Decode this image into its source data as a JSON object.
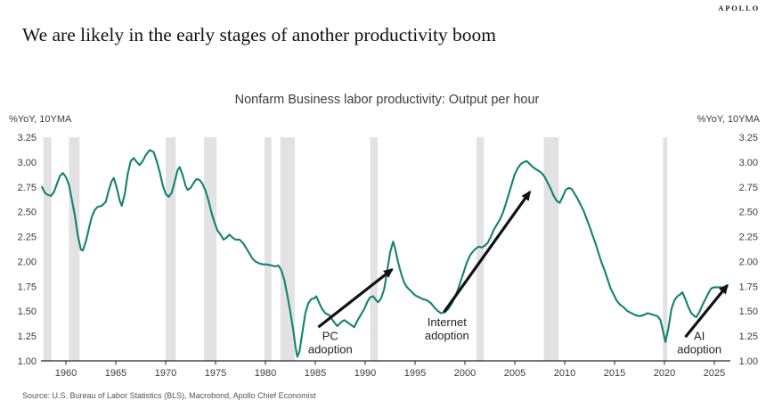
{
  "brand": "APOLLO",
  "headline": "We are likely in the early stages of another productivity boom",
  "source": "Source: U.S. Bureau of Labor Statistics (BLS), Macrobond, Apollo Chief Economist",
  "chart_data": {
    "type": "line",
    "title": "Nonfarm Business labor productivity: Output per hour",
    "y_axis_label_left": "%YoY, 10YMA",
    "y_axis_label_right": "%YoY, 10YMA",
    "ylim": [
      1.0,
      3.25
    ],
    "xlim": [
      1957.5,
      2026.6
    ],
    "grid": false,
    "legend": "none",
    "y_ticks": [
      "3.25",
      "3.00",
      "2.75",
      "2.50",
      "2.25",
      "2.00",
      "1.75",
      "1.50",
      "1.25",
      "1.00"
    ],
    "x_ticks": [
      1960,
      1965,
      1970,
      1975,
      1980,
      1985,
      1990,
      1995,
      2000,
      2005,
      2010,
      2015,
      2020,
      2025
    ],
    "line_color": "#148270",
    "recession_band_color": "#e2e2e2",
    "recessions": [
      [
        1957.75,
        1958.55
      ],
      [
        1960.3,
        1961.35
      ],
      [
        1970.0,
        1971.0
      ],
      [
        1973.85,
        1975.1
      ],
      [
        1979.9,
        1980.6
      ],
      [
        1981.5,
        1982.95
      ],
      [
        1990.5,
        1991.25
      ],
      [
        2001.15,
        2001.9
      ],
      [
        2007.9,
        2009.4
      ],
      [
        2019.85,
        2020.3
      ]
    ],
    "series": [
      {
        "points": [
          [
            1957.6,
            2.75
          ],
          [
            1957.9,
            2.69
          ],
          [
            1958.2,
            2.67
          ],
          [
            1958.5,
            2.66
          ],
          [
            1958.8,
            2.7
          ],
          [
            1959.1,
            2.78
          ],
          [
            1959.4,
            2.86
          ],
          [
            1959.7,
            2.89
          ],
          [
            1960.0,
            2.85
          ],
          [
            1960.3,
            2.77
          ],
          [
            1960.6,
            2.62
          ],
          [
            1960.9,
            2.46
          ],
          [
            1961.2,
            2.26
          ],
          [
            1961.5,
            2.12
          ],
          [
            1961.7,
            2.11
          ],
          [
            1962.0,
            2.2
          ],
          [
            1962.3,
            2.33
          ],
          [
            1962.6,
            2.45
          ],
          [
            1962.9,
            2.52
          ],
          [
            1963.2,
            2.55
          ],
          [
            1963.6,
            2.56
          ],
          [
            1964.0,
            2.6
          ],
          [
            1964.3,
            2.72
          ],
          [
            1964.6,
            2.81
          ],
          [
            1964.8,
            2.84
          ],
          [
            1965.1,
            2.74
          ],
          [
            1965.4,
            2.61
          ],
          [
            1965.6,
            2.56
          ],
          [
            1965.9,
            2.68
          ],
          [
            1966.2,
            2.88
          ],
          [
            1966.5,
            3.01
          ],
          [
            1966.8,
            3.04
          ],
          [
            1967.1,
            3.0
          ],
          [
            1967.4,
            2.97
          ],
          [
            1967.7,
            3.01
          ],
          [
            1968.0,
            3.07
          ],
          [
            1968.4,
            3.12
          ],
          [
            1968.8,
            3.1
          ],
          [
            1969.1,
            3.01
          ],
          [
            1969.4,
            2.9
          ],
          [
            1969.7,
            2.77
          ],
          [
            1970.0,
            2.68
          ],
          [
            1970.3,
            2.65
          ],
          [
            1970.6,
            2.69
          ],
          [
            1970.9,
            2.8
          ],
          [
            1971.2,
            2.92
          ],
          [
            1971.4,
            2.95
          ],
          [
            1971.7,
            2.87
          ],
          [
            1972.0,
            2.76
          ],
          [
            1972.2,
            2.72
          ],
          [
            1972.5,
            2.74
          ],
          [
            1972.8,
            2.79
          ],
          [
            1973.1,
            2.83
          ],
          [
            1973.4,
            2.82
          ],
          [
            1973.7,
            2.78
          ],
          [
            1974.0,
            2.71
          ],
          [
            1974.3,
            2.61
          ],
          [
            1974.6,
            2.49
          ],
          [
            1974.9,
            2.39
          ],
          [
            1975.2,
            2.31
          ],
          [
            1975.5,
            2.27
          ],
          [
            1975.8,
            2.22
          ],
          [
            1976.1,
            2.24
          ],
          [
            1976.4,
            2.27
          ],
          [
            1976.7,
            2.24
          ],
          [
            1977.0,
            2.22
          ],
          [
            1977.4,
            2.22
          ],
          [
            1977.8,
            2.18
          ],
          [
            1978.1,
            2.13
          ],
          [
            1978.4,
            2.08
          ],
          [
            1978.7,
            2.03
          ],
          [
            1979.0,
            2.0
          ],
          [
            1979.4,
            1.98
          ],
          [
            1979.8,
            1.97
          ],
          [
            1980.2,
            1.97
          ],
          [
            1980.6,
            1.96
          ],
          [
            1981.0,
            1.95
          ],
          [
            1981.3,
            1.96
          ],
          [
            1981.6,
            1.91
          ],
          [
            1981.9,
            1.81
          ],
          [
            1982.2,
            1.66
          ],
          [
            1982.5,
            1.49
          ],
          [
            1982.8,
            1.3
          ],
          [
            1983.0,
            1.15
          ],
          [
            1983.2,
            1.04
          ],
          [
            1983.4,
            1.09
          ],
          [
            1983.7,
            1.28
          ],
          [
            1984.0,
            1.48
          ],
          [
            1984.3,
            1.58
          ],
          [
            1984.6,
            1.62
          ],
          [
            1984.9,
            1.63
          ],
          [
            1985.1,
            1.65
          ],
          [
            1985.4,
            1.58
          ],
          [
            1985.7,
            1.52
          ],
          [
            1986.0,
            1.48
          ],
          [
            1986.4,
            1.46
          ],
          [
            1986.8,
            1.4
          ],
          [
            1987.2,
            1.35
          ],
          [
            1987.6,
            1.39
          ],
          [
            1987.9,
            1.41
          ],
          [
            1988.2,
            1.39
          ],
          [
            1988.6,
            1.36
          ],
          [
            1988.9,
            1.34
          ],
          [
            1989.2,
            1.4
          ],
          [
            1989.6,
            1.47
          ],
          [
            1989.9,
            1.52
          ],
          [
            1990.2,
            1.59
          ],
          [
            1990.5,
            1.64
          ],
          [
            1990.8,
            1.65
          ],
          [
            1991.1,
            1.61
          ],
          [
            1991.3,
            1.59
          ],
          [
            1991.6,
            1.63
          ],
          [
            1991.9,
            1.72
          ],
          [
            1992.2,
            1.9
          ],
          [
            1992.5,
            2.09
          ],
          [
            1992.8,
            2.2
          ],
          [
            1993.0,
            2.13
          ],
          [
            1993.3,
            1.99
          ],
          [
            1993.6,
            1.88
          ],
          [
            1993.9,
            1.79
          ],
          [
            1994.2,
            1.74
          ],
          [
            1994.6,
            1.7
          ],
          [
            1995.0,
            1.66
          ],
          [
            1995.4,
            1.64
          ],
          [
            1995.8,
            1.62
          ],
          [
            1996.2,
            1.61
          ],
          [
            1996.6,
            1.58
          ],
          [
            1997.0,
            1.53
          ],
          [
            1997.3,
            1.5
          ],
          [
            1997.6,
            1.48
          ],
          [
            1998.0,
            1.49
          ],
          [
            1998.3,
            1.52
          ],
          [
            1998.7,
            1.58
          ],
          [
            1999.0,
            1.64
          ],
          [
            1999.3,
            1.72
          ],
          [
            1999.6,
            1.81
          ],
          [
            1999.9,
            1.9
          ],
          [
            2000.2,
            1.99
          ],
          [
            2000.5,
            2.06
          ],
          [
            2000.8,
            2.1
          ],
          [
            2001.1,
            2.13
          ],
          [
            2001.4,
            2.15
          ],
          [
            2001.7,
            2.14
          ],
          [
            2002.0,
            2.16
          ],
          [
            2002.3,
            2.19
          ],
          [
            2002.6,
            2.25
          ],
          [
            2002.9,
            2.32
          ],
          [
            2003.2,
            2.37
          ],
          [
            2003.5,
            2.42
          ],
          [
            2003.8,
            2.49
          ],
          [
            2004.1,
            2.58
          ],
          [
            2004.4,
            2.68
          ],
          [
            2004.7,
            2.78
          ],
          [
            2005.0,
            2.88
          ],
          [
            2005.3,
            2.94
          ],
          [
            2005.6,
            2.98
          ],
          [
            2005.9,
            3.0
          ],
          [
            2006.2,
            3.01
          ],
          [
            2006.5,
            2.98
          ],
          [
            2006.8,
            2.95
          ],
          [
            2007.1,
            2.93
          ],
          [
            2007.4,
            2.91
          ],
          [
            2007.7,
            2.89
          ],
          [
            2008.0,
            2.85
          ],
          [
            2008.3,
            2.79
          ],
          [
            2008.6,
            2.73
          ],
          [
            2008.9,
            2.66
          ],
          [
            2009.2,
            2.61
          ],
          [
            2009.5,
            2.59
          ],
          [
            2009.8,
            2.65
          ],
          [
            2010.1,
            2.72
          ],
          [
            2010.4,
            2.74
          ],
          [
            2010.7,
            2.73
          ],
          [
            2011.0,
            2.68
          ],
          [
            2011.3,
            2.63
          ],
          [
            2011.6,
            2.57
          ],
          [
            2011.9,
            2.51
          ],
          [
            2012.2,
            2.43
          ],
          [
            2012.5,
            2.35
          ],
          [
            2012.8,
            2.26
          ],
          [
            2013.1,
            2.18
          ],
          [
            2013.4,
            2.08
          ],
          [
            2013.7,
            1.99
          ],
          [
            2014.0,
            1.91
          ],
          [
            2014.3,
            1.82
          ],
          [
            2014.6,
            1.73
          ],
          [
            2014.9,
            1.67
          ],
          [
            2015.2,
            1.61
          ],
          [
            2015.5,
            1.57
          ],
          [
            2015.9,
            1.54
          ],
          [
            2016.3,
            1.5
          ],
          [
            2016.7,
            1.48
          ],
          [
            2017.1,
            1.46
          ],
          [
            2017.5,
            1.45
          ],
          [
            2017.9,
            1.46
          ],
          [
            2018.3,
            1.48
          ],
          [
            2018.7,
            1.47
          ],
          [
            2019.0,
            1.46
          ],
          [
            2019.3,
            1.45
          ],
          [
            2019.6,
            1.41
          ],
          [
            2019.9,
            1.28
          ],
          [
            2020.1,
            1.19
          ],
          [
            2020.4,
            1.33
          ],
          [
            2020.7,
            1.52
          ],
          [
            2021.0,
            1.61
          ],
          [
            2021.3,
            1.65
          ],
          [
            2021.6,
            1.67
          ],
          [
            2021.8,
            1.69
          ],
          [
            2022.1,
            1.62
          ],
          [
            2022.4,
            1.54
          ],
          [
            2022.7,
            1.48
          ],
          [
            2023.0,
            1.45
          ],
          [
            2023.2,
            1.44
          ],
          [
            2023.5,
            1.49
          ],
          [
            2023.8,
            1.56
          ],
          [
            2024.1,
            1.62
          ],
          [
            2024.4,
            1.68
          ],
          [
            2024.7,
            1.73
          ],
          [
            2025.0,
            1.74
          ],
          [
            2025.4,
            1.74
          ],
          [
            2025.8,
            1.74
          ]
        ]
      }
    ],
    "annotations": [
      {
        "lines": [
          "PC",
          "adoption"
        ],
        "arrow_from": [
          1985.3,
          1.34
        ],
        "arrow_to": [
          1992.7,
          1.92
        ],
        "label_at": [
          1986.5,
          1.25
        ]
      },
      {
        "lines": [
          "Internet",
          "adoption"
        ],
        "arrow_from": [
          1997.9,
          1.49
        ],
        "arrow_to": [
          2006.5,
          2.7
        ],
        "label_at": [
          1998.2,
          1.39
        ]
      },
      {
        "lines": [
          "AI",
          "adoption"
        ],
        "arrow_from": [
          2022.1,
          1.24
        ],
        "arrow_to": [
          2026.3,
          1.76
        ],
        "label_at": [
          2023.5,
          1.25
        ]
      }
    ]
  }
}
